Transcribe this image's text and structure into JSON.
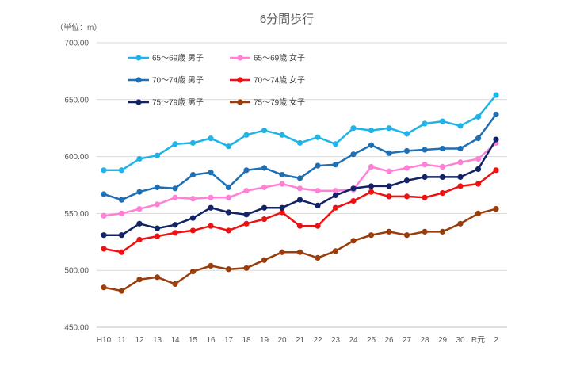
{
  "chart_data": {
    "type": "line",
    "title": "6分間歩行",
    "unit_label": "（単位：m）",
    "xlabel": "",
    "ylabel": "",
    "ylim": [
      450,
      700
    ],
    "y_ticks": [
      450,
      500,
      550,
      600,
      650,
      700
    ],
    "y_tick_labels": [
      "450.00",
      "500.00",
      "550.00",
      "600.00",
      "650.00",
      "700.00"
    ],
    "categories": [
      "H10",
      "11",
      "12",
      "13",
      "14",
      "15",
      "16",
      "17",
      "18",
      "19",
      "20",
      "21",
      "22",
      "23",
      "24",
      "25",
      "26",
      "27",
      "28",
      "29",
      "30",
      "R元",
      "2"
    ],
    "grid": "horizontal",
    "legend_position": "top-left",
    "series": [
      {
        "name": "65～69歳 男子",
        "color": "#1fb4e8",
        "values": [
          588,
          588,
          598,
          601,
          611,
          612,
          616,
          609,
          619,
          623,
          619,
          612,
          617,
          611,
          625,
          623,
          625,
          620,
          629,
          631,
          627,
          635,
          654
        ]
      },
      {
        "name": "65～69歳 女子",
        "color": "#ff80d6",
        "values": [
          548,
          550,
          554,
          558,
          564,
          563,
          564,
          564,
          570,
          573,
          576,
          572,
          570,
          570,
          571,
          591,
          587,
          590,
          593,
          591,
          595,
          598,
          612
        ]
      },
      {
        "name": "70～74歳 男子",
        "color": "#1f6fb4",
        "values": [
          567,
          562,
          569,
          573,
          572,
          584,
          586,
          573,
          588,
          590,
          584,
          581,
          592,
          593,
          602,
          610,
          603,
          605,
          606,
          607,
          607,
          616,
          637
        ]
      },
      {
        "name": "70～74歳 女子",
        "color": "#ee1111",
        "values": [
          519,
          516,
          527,
          530,
          533,
          535,
          539,
          535,
          541,
          545,
          551,
          539,
          539,
          555,
          561,
          569,
          565,
          565,
          564,
          568,
          574,
          576,
          588
        ]
      },
      {
        "name": "75～79歳 男子",
        "color": "#112266",
        "values": [
          531,
          531,
          541,
          537,
          540,
          546,
          555,
          551,
          549,
          555,
          555,
          562,
          557,
          566,
          572,
          574,
          574,
          579,
          582,
          582,
          582,
          589,
          615
        ]
      },
      {
        "name": "75～79歳 女子",
        "color": "#993d0a",
        "values": [
          485,
          482,
          492,
          494,
          488,
          499,
          504,
          501,
          502,
          509,
          516,
          516,
          511,
          517,
          526,
          531,
          534,
          531,
          534,
          534,
          541,
          550,
          554
        ]
      }
    ]
  }
}
